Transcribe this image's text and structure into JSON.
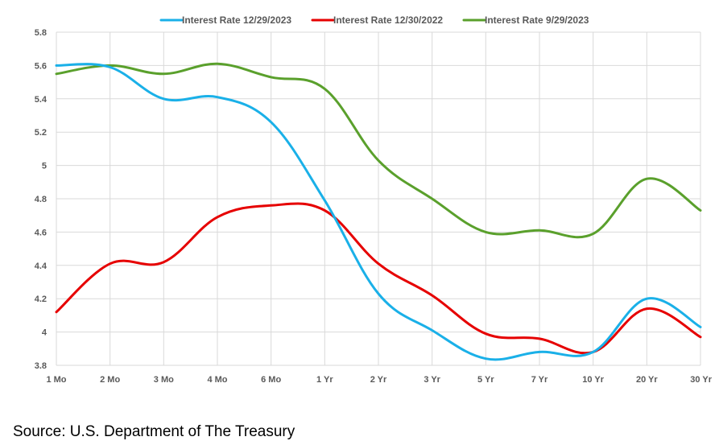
{
  "chart_data": {
    "type": "line",
    "categories": [
      "1 Mo",
      "2 Mo",
      "3 Mo",
      "4 Mo",
      "6 Mo",
      "1 Yr",
      "2 Yr",
      "3 Yr",
      "5 Yr",
      "7 Yr",
      "10 Yr",
      "20 Yr",
      "30 Yr"
    ],
    "series": [
      {
        "name": "Interest Rate 12/29/2023",
        "color": "#1ab0e8",
        "values": [
          5.6,
          5.59,
          5.4,
          5.41,
          5.26,
          4.79,
          4.23,
          4.01,
          3.84,
          3.88,
          3.88,
          4.2,
          4.03
        ]
      },
      {
        "name": "Interest Rate 12/30/2022",
        "color": "#e60000",
        "values": [
          4.12,
          4.41,
          4.42,
          4.69,
          4.76,
          4.73,
          4.41,
          4.22,
          3.99,
          3.96,
          3.88,
          4.14,
          3.97
        ]
      },
      {
        "name": "Interest Rate 9/29/2023",
        "color": "#5aa02c",
        "values": [
          5.55,
          5.6,
          5.55,
          5.61,
          5.53,
          5.46,
          5.03,
          4.8,
          4.6,
          4.61,
          4.59,
          4.92,
          4.73
        ]
      }
    ],
    "ylim": [
      3.8,
      5.8
    ],
    "yticks": [
      "3.8",
      "4",
      "4.2",
      "4.4",
      "4.6",
      "4.8",
      "5",
      "5.2",
      "5.4",
      "5.6",
      "5.8"
    ],
    "grid": true,
    "legend_position": "top-center",
    "title": "",
    "xlabel": "",
    "ylabel": ""
  },
  "footer": {
    "source_text": "Source: U.S. Department of The Treasury"
  }
}
